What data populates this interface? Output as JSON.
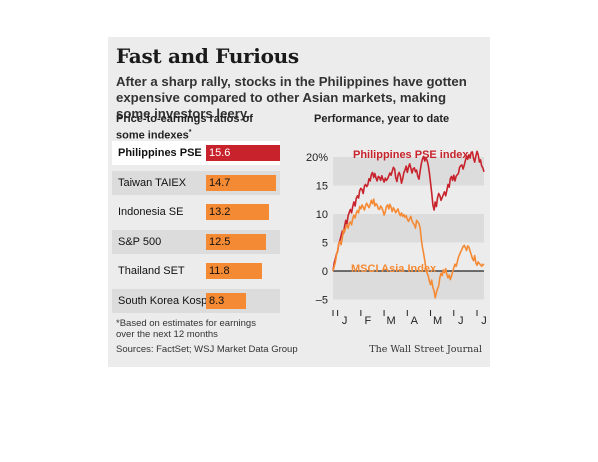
{
  "title": "Fast and Furious",
  "subtitle": "After a sharp rally, stocks in the Philippines have gotten expensive compared to other Asian markets, making some investors leery.",
  "left_heading_line1": "Price-to-earnings ratios of",
  "left_heading_line2": "some indexes",
  "left_heading_mark": "*",
  "right_heading": "Performance, year to date",
  "footnote_line1": "*Based on estimates for earnings",
  "footnote_line2": "over the next 12 months",
  "sources": "Sources: FactSet; WSJ Market Data Group",
  "credit": "The Wall Street Journal",
  "colors": {
    "highlight": "#c8232c",
    "bars": "#f58a35",
    "line_ref": "#222222"
  },
  "chart_data": [
    {
      "type": "bar",
      "orientation": "horizontal",
      "categories": [
        "Philippines PSE",
        "Taiwan TAIEX",
        "Indonesia SE",
        "S&P 500",
        "Thailand SET",
        "South Korea Kospi"
      ],
      "values": [
        15.6,
        14.7,
        13.2,
        12.5,
        11.8,
        8.3
      ],
      "labels": [
        "15.6",
        "14.7",
        "13.2",
        "12.5",
        "11.8",
        "8.3"
      ],
      "highlight": "Philippines PSE"
    },
    {
      "type": "line",
      "ylim": [
        -5,
        22
      ],
      "ytick_labels": [
        "20%",
        "15",
        "10",
        "5",
        "0",
        "–5"
      ],
      "yticks": [
        20,
        15,
        10,
        5,
        0,
        -5
      ],
      "x_labels": [
        "J",
        "F",
        "M",
        "A",
        "M",
        "J",
        "J"
      ],
      "series": [
        {
          "name": "Philippines PSE index",
          "color": "#c8232c",
          "x": [
            0,
            0.05,
            0.1,
            0.15,
            0.2,
            0.25,
            0.3,
            0.35,
            0.4,
            0.45,
            0.5,
            0.55,
            0.6,
            0.65,
            0.7,
            0.75,
            0.8,
            0.85,
            0.9,
            0.95,
            1,
            1.05,
            1.1,
            1.15,
            1.2,
            1.25,
            1.3,
            1.35,
            1.4,
            1.45,
            1.5,
            1.55,
            1.6,
            1.65,
            1.7,
            1.75,
            1.8,
            1.85,
            1.9,
            1.95,
            2,
            2.05,
            2.1,
            2.15,
            2.2,
            2.25,
            2.3,
            2.35,
            2.4,
            2.45,
            2.5,
            2.55,
            2.6,
            2.65,
            2.7,
            2.75,
            2.8,
            2.85,
            2.9,
            2.95,
            3,
            3.05,
            3.1,
            3.15,
            3.2,
            3.25,
            3.3,
            3.35,
            3.4,
            3.45,
            3.5,
            3.55,
            3.6,
            3.65,
            3.7,
            3.75,
            3.8,
            3.85,
            3.9,
            3.95,
            4,
            4.05,
            4.1,
            4.15,
            4.2,
            4.25,
            4.3,
            4.35,
            4.4,
            4.45,
            4.5,
            4.55,
            4.6,
            4.65,
            4.7,
            4.75,
            4.8,
            4.85,
            4.9,
            4.95,
            5,
            5.05,
            5.1,
            5.15,
            5.2,
            5.25,
            5.3,
            5.35,
            5.4,
            5.45,
            5.5,
            5.55,
            5.6,
            5.65,
            5.7,
            5.75,
            5.8,
            5.85,
            5.9,
            5.95,
            6,
            6.05,
            6.1,
            6.15,
            6.2,
            6.25,
            6.3,
            6.35,
            6.4,
            6.45,
            6.5
          ],
          "values": [
            0.0,
            1.4,
            2.1,
            3.0,
            3.4,
            4.8,
            5.4,
            6.2,
            7.0,
            6.6,
            7.9,
            8.9,
            8.2,
            9.7,
            10.3,
            10.8,
            10.2,
            11.3,
            12.1,
            11.4,
            12.7,
            13.2,
            12.8,
            14.1,
            14.5,
            14.3,
            13.6,
            14.9,
            15.2,
            14.8,
            15.1,
            16.2,
            15.8,
            16.9,
            17.3,
            16.4,
            17.1,
            16.3,
            15.8,
            16.6,
            16.4,
            15.9,
            16.7,
            16.1,
            15.6,
            16.3,
            15.9,
            16.2,
            16.7,
            17.2,
            16.8,
            17.5,
            18.2,
            17.9,
            16.4,
            15.7,
            16.8,
            17.3,
            16.6,
            15.4,
            16.2,
            17.3,
            17.7,
            18.4,
            17.3,
            18.2,
            18.8,
            18.1,
            17.2,
            17.9,
            18.1,
            17.4,
            17.7,
            16.6,
            16.1,
            17.5,
            18.8,
            19.6,
            20.1,
            19.3,
            19.8,
            19.4,
            18.6,
            17.2,
            15.4,
            13.7,
            11.6,
            10.7,
            12.1,
            11.3,
            12.8,
            13.6,
            13.2,
            12.4,
            12.9,
            13.4,
            13.9,
            13.2,
            14.1,
            15.2,
            14.7,
            16.2,
            16.6,
            15.9,
            16.8,
            15.8,
            16.6,
            16.9,
            17.1,
            18.2,
            18.5,
            18.6,
            17.9,
            18.6,
            19.4,
            20.2,
            19.6,
            20.4,
            19.8,
            20.8,
            20.9,
            19.8,
            19.1,
            20.2,
            21.0,
            20.4,
            19.1,
            19.5,
            18.4,
            18.1,
            17.4
          ]
        },
        {
          "name": "MSCI Asia Index",
          "color": "#f58a35",
          "x": [
            0,
            0.05,
            0.1,
            0.15,
            0.2,
            0.25,
            0.3,
            0.35,
            0.4,
            0.45,
            0.5,
            0.55,
            0.6,
            0.65,
            0.7,
            0.75,
            0.8,
            0.85,
            0.9,
            0.95,
            1,
            1.05,
            1.1,
            1.15,
            1.2,
            1.25,
            1.3,
            1.35,
            1.4,
            1.45,
            1.5,
            1.55,
            1.6,
            1.65,
            1.7,
            1.75,
            1.8,
            1.85,
            1.9,
            1.95,
            2,
            2.05,
            2.1,
            2.15,
            2.2,
            2.25,
            2.3,
            2.35,
            2.4,
            2.45,
            2.5,
            2.55,
            2.6,
            2.65,
            2.7,
            2.75,
            2.8,
            2.85,
            2.9,
            2.95,
            3,
            3.05,
            3.1,
            3.15,
            3.2,
            3.25,
            3.3,
            3.35,
            3.4,
            3.45,
            3.5,
            3.55,
            3.6,
            3.65,
            3.7,
            3.75,
            3.8,
            3.85,
            3.9,
            3.95,
            4,
            4.05,
            4.1,
            4.15,
            4.2,
            4.25,
            4.3,
            4.35,
            4.4,
            4.45,
            4.5,
            4.55,
            4.6,
            4.65,
            4.7,
            4.75,
            4.8,
            4.85,
            4.9,
            4.95,
            5,
            5.05,
            5.1,
            5.15,
            5.2,
            5.25,
            5.3,
            5.35,
            5.4,
            5.45,
            5.5,
            5.55,
            5.6,
            5.65,
            5.7,
            5.75,
            5.8,
            5.85,
            5.9,
            5.95,
            6,
            6.05,
            6.1,
            6.15,
            6.2,
            6.25,
            6.3,
            6.35,
            6.4,
            6.45,
            6.5
          ],
          "values": [
            0.0,
            0.8,
            1.5,
            2.8,
            3.6,
            4.9,
            5.2,
            4.6,
            5.8,
            7.2,
            6.9,
            7.7,
            8.1,
            7.5,
            8.4,
            8.6,
            8.1,
            9.2,
            9.8,
            9.3,
            10.1,
            10.6,
            10.2,
            11.3,
            10.9,
            11.6,
            11.2,
            10.7,
            11.4,
            11.9,
            11.5,
            11.1,
            11.7,
            12.4,
            11.8,
            12.6,
            11.4,
            11.8,
            11.6,
            10.9,
            10.8,
            11.4,
            11.1,
            10.6,
            9.8,
            10.4,
            11.3,
            11.6,
            10.9,
            11.7,
            11.2,
            10.4,
            11.1,
            10.7,
            10.2,
            10.6,
            10.9,
            10.1,
            9.7,
            10.2,
            9.6,
            9.9,
            9.4,
            9.7,
            9.1,
            8.7,
            9.2,
            9.6,
            8.8,
            8.4,
            8.1,
            7.5,
            8.9,
            8.6,
            8.3,
            7.6,
            5.6,
            4.2,
            3.1,
            1.8,
            0.5,
            -0.4,
            -0.8,
            -1.8,
            -2.4,
            -1.6,
            -2.9,
            -3.5,
            -4.7,
            -3.8,
            -3.1,
            -2.6,
            -1.1,
            -0.4,
            -0.8,
            0.2,
            -0.3,
            0.4,
            -0.6,
            -1.2,
            -0.7,
            -1.5,
            -0.9,
            -0.2,
            0.6,
            1.2,
            0.8,
            1.6,
            2.4,
            2.9,
            3.4,
            3.8,
            4.3,
            4.5,
            4.1,
            3.6,
            4.4,
            4.2,
            3.5,
            2.9,
            2.2,
            1.8,
            2.7,
            1.4,
            1.0,
            1.6,
            1.3,
            1.1,
            0.8,
            1.2,
            1.0
          ]
        }
      ]
    }
  ]
}
